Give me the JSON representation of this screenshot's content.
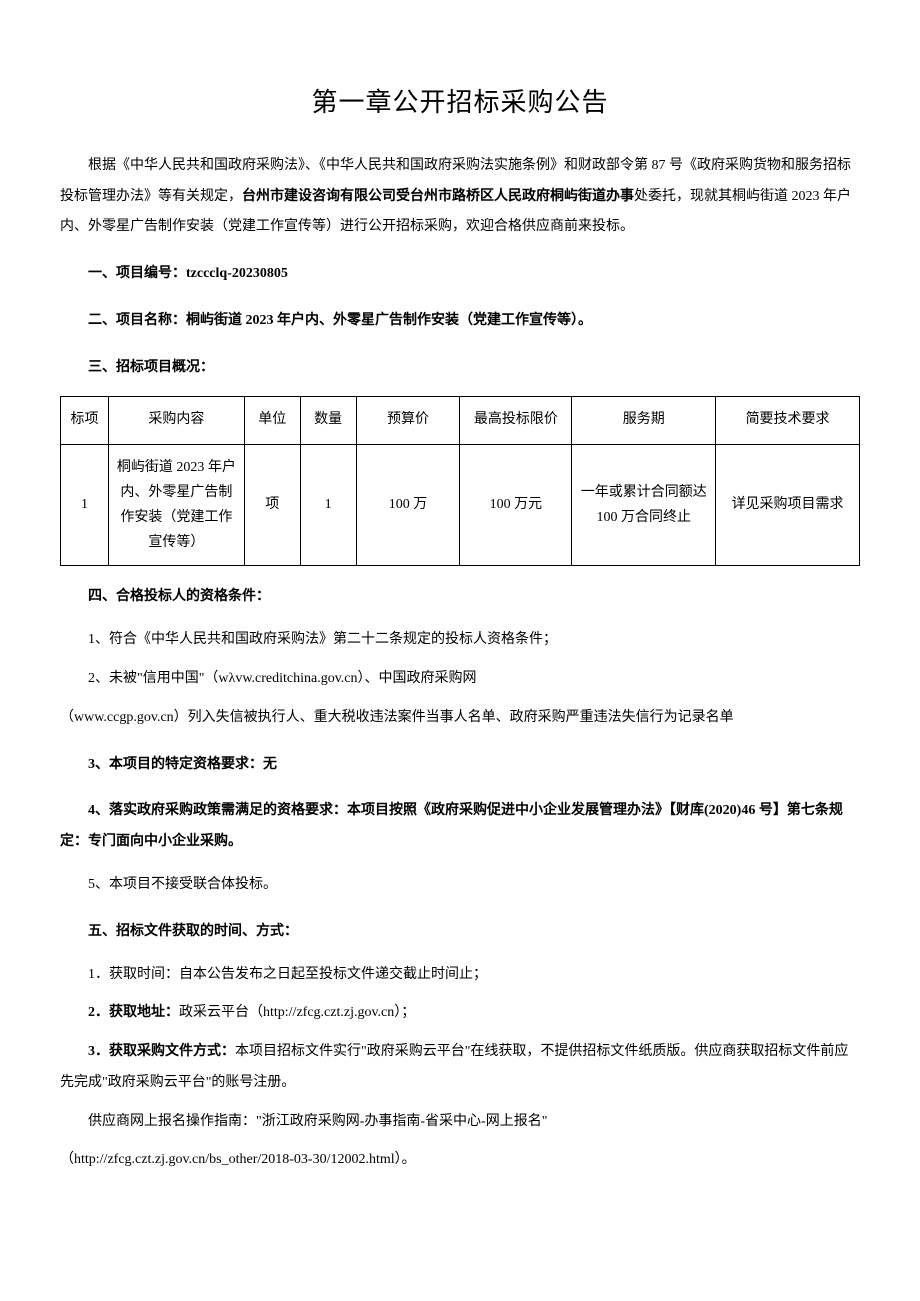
{
  "title": "第一章公开招标采购公告",
  "intro": {
    "part1": "根据《中华人民共和国政府采购法》、《中华人民共和国政府采购法实施条例》和财政部令第 87 号《政府采购货物和服务招标投标管理办法》等有关规定，",
    "part2_bold": "台州市建设咨询有限公司受台州市路桥区人民政府桐屿街道办事",
    "part3": "处委托，现就其桐屿街道 2023 年户内、外零星广告制作安装（党建工作宣传等）进行公开招标采购，欢迎合格供应商前来投标。"
  },
  "section1": "一、项目编号：tzccclq-20230805",
  "section2": "二、项目名称：桐屿街道 2023 年户内、外零星广告制作安装（党建工作宣传等）。",
  "section3": "三、招标项目概况：",
  "table": {
    "headers": [
      "标项",
      "采购内容",
      "单位",
      "数量",
      "预算价",
      "最高投标限价",
      "服务期",
      "简要技术要求"
    ],
    "row": [
      "1",
      "桐屿街道 2023 年户内、外零星广告制作安装（党建工作宣传等）",
      "项",
      "1",
      "100 万",
      "100 万元",
      "一年或累计合同额达 100 万合同终止",
      "详见采购项目需求"
    ]
  },
  "section4": "四、合格投标人的资格条件：",
  "item4_1": "1、符合《中华人民共和国政府采购法》第二十二条规定的投标人资格条件；",
  "item4_2a": "2、未被\"信用中国\"（wλvw.creditchina.gov.cn）、中国政府采购网",
  "item4_2b": "（www.ccgp.gov.cn）列入失信被执行人、重大税收违法案件当事人名单、政府采购严重违法失信行为记录名单",
  "item4_3": "3、本项目的特定资格要求：无",
  "item4_4": "4、落实政府采购政策需满足的资格要求：本项目按照《政府采购促进中小企业发展管理办法》【财库(2020)46 号】第七条规定：专门面向中小企业采购。",
  "item4_5": "5、本项目不接受联合体投标。",
  "section5": "五、招标文件获取的时间、方式：",
  "item5_1": "1．获取时间：自本公告发布之日起至投标文件递交截止时间止；",
  "item5_2_label": "2．获取地址：",
  "item5_2_text": "政采云平台（http://zfcg.czt.zj.gov.cn）；",
  "item5_3_label": "3．获取采购文件方式：",
  "item5_3_text": "本项目招标文件实行\"政府采购云平台\"在线获取，不提供招标文件纸质版。供应商获取招标文件前应先完成\"政府采购云平台\"的账号注册。",
  "item5_guide": "供应商网上报名操作指南：\"浙江政府采购网-办事指南-省采中心-网上报名\"",
  "item5_url": "（http://zfcg.czt.zj.gov.cn/bs_other/2018-03-30/12002.html）。"
}
